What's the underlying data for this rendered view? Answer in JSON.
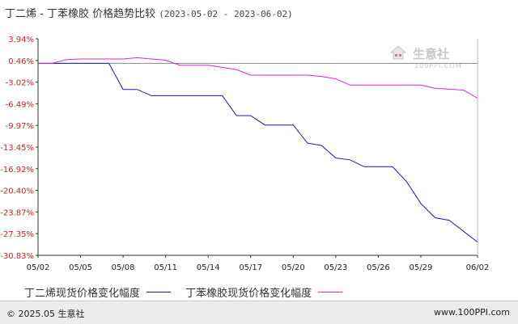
{
  "title": {
    "main": "丁二烯 - 丁苯橡胶 价格趋势比较",
    "range": "(2023-05-02 - 2023-06-02)"
  },
  "watermark": {
    "brand": "生意社",
    "url": "100PPI.COM"
  },
  "footer": {
    "left": "© 2025.05 生意社",
    "right": "www.100PPI.com"
  },
  "colors": {
    "series1": "#1a1aa6",
    "series2": "#e01ee0",
    "axis": "#333333",
    "zero": "#888888"
  },
  "chart_data": {
    "type": "line",
    "title": "丁二烯 - 丁苯橡胶 价格趋势比较 (2023-05-02 - 2023-06-02)",
    "xlabel": "",
    "ylabel": "",
    "x_ticks": [
      "05/02",
      "05/05",
      "05/08",
      "05/11",
      "05/14",
      "05/17",
      "05/20",
      "05/23",
      "05/26",
      "05/29",
      "06/02"
    ],
    "y_ticks": [
      "3.94%",
      "0.46%",
      "-3.02%",
      "-6.49%",
      "-9.97%",
      "-13.45%",
      "-16.92%",
      "-20.40%",
      "-23.87%",
      "-27.35%",
      "-30.83%"
    ],
    "ylim": [
      -30.83,
      3.94
    ],
    "x_range": [
      "05/02",
      "06/02"
    ],
    "grid": false,
    "legend_position": "bottom",
    "series": [
      {
        "name": "丁二烯现货价格变化幅度",
        "color": "#1a1aa6",
        "points": [
          [
            "05/02",
            0
          ],
          [
            "05/05",
            0
          ],
          [
            "05/07",
            0
          ],
          [
            "05/08",
            -4.2
          ],
          [
            "05/09",
            -4.2
          ],
          [
            "05/10",
            -5.2
          ],
          [
            "05/15",
            -5.2
          ],
          [
            "05/16",
            -8.4
          ],
          [
            "05/17",
            -8.4
          ],
          [
            "05/18",
            -9.9
          ],
          [
            "05/20",
            -9.9
          ],
          [
            "05/21",
            -12.8
          ],
          [
            "05/22",
            -13.2
          ],
          [
            "05/23",
            -15.2
          ],
          [
            "05/24",
            -15.5
          ],
          [
            "05/25",
            -16.6
          ],
          [
            "05/27",
            -16.6
          ],
          [
            "05/28",
            -19.0
          ],
          [
            "05/29",
            -22.5
          ],
          [
            "05/30",
            -24.8
          ],
          [
            "05/31",
            -25.2
          ],
          [
            "06/02",
            -28.7
          ]
        ]
      },
      {
        "name": "丁苯橡胶现货价格变化幅度",
        "color": "#e01ee0",
        "points": [
          [
            "05/02",
            0
          ],
          [
            "05/03",
            0
          ],
          [
            "05/04",
            0.6
          ],
          [
            "05/05",
            0.7
          ],
          [
            "05/08",
            0.7
          ],
          [
            "05/09",
            0.9
          ],
          [
            "05/10",
            0.7
          ],
          [
            "05/11",
            0.5
          ],
          [
            "05/12",
            -0.3
          ],
          [
            "05/13",
            -0.3
          ],
          [
            "05/14",
            -0.3
          ],
          [
            "05/16",
            -1.0
          ],
          [
            "05/17",
            -1.9
          ],
          [
            "05/21",
            -1.9
          ],
          [
            "05/22",
            -2.1
          ],
          [
            "05/23",
            -2.5
          ],
          [
            "05/24",
            -3.5
          ],
          [
            "05/29",
            -3.5
          ],
          [
            "05/30",
            -4.0
          ],
          [
            "06/01",
            -4.3
          ],
          [
            "06/02",
            -5.6
          ]
        ]
      }
    ]
  }
}
